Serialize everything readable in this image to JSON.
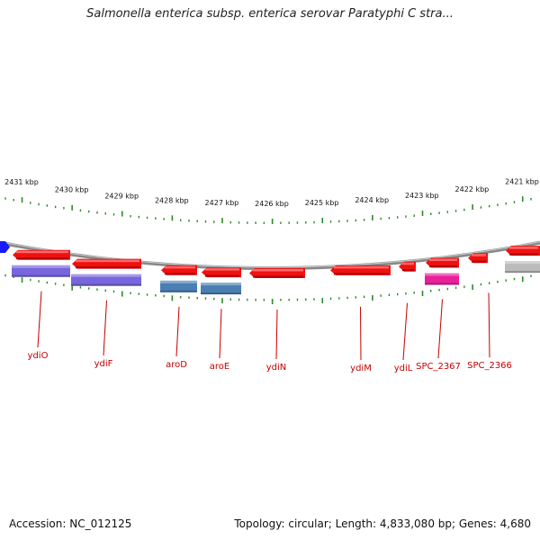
{
  "title": "Salmonella enterica subsp. enterica serovar Paratyphi C stra...",
  "footer": {
    "accession": "Accession: NC_012125",
    "summary": "Topology: circular; Length: 4,833,080 bp; Genes: 4,680"
  },
  "colors": {
    "forward_gene": "#ee1111",
    "cds_purple": "#7766dd",
    "cds_blue": "#4a7fb3",
    "cds_pink": "#e8209a",
    "cds_gray": "#bbbbbb",
    "backbone": "#888888",
    "ticks": "#2a8a2a",
    "marker": "#1a1aff",
    "label": "#c40000"
  },
  "scale": [
    {
      "kbp": 2431,
      "label": "2431 kbp"
    },
    {
      "kbp": 2430,
      "label": "2430 kbp"
    },
    {
      "kbp": 2429,
      "label": "2429 kbp"
    },
    {
      "kbp": 2428,
      "label": "2428 kbp"
    },
    {
      "kbp": 2427,
      "label": "2427 kbp"
    },
    {
      "kbp": 2426,
      "label": "2426 kbp"
    },
    {
      "kbp": 2425,
      "label": "2425 kbp"
    },
    {
      "kbp": 2424,
      "label": "2424 kbp"
    },
    {
      "kbp": 2423,
      "label": "2423 kbp"
    },
    {
      "kbp": 2422,
      "label": "2422 kbp"
    },
    {
      "kbp": 2421,
      "label": "2421 kbp"
    }
  ],
  "genes": [
    {
      "name": "ydiO",
      "cds": "purple"
    },
    {
      "name": "ydiF",
      "cds": "purple"
    },
    {
      "name": "aroD",
      "cds": "blue"
    },
    {
      "name": "aroE",
      "cds": "blue"
    },
    {
      "name": "ydiN",
      "cds": "none"
    },
    {
      "name": "ydiM",
      "cds": "none"
    },
    {
      "name": "ydiL",
      "cds": "none"
    },
    {
      "name": "SPC_2367",
      "cds": "pink"
    },
    {
      "name": "SPC_2366",
      "cds": "none"
    },
    {
      "name": "",
      "cds": "gray"
    }
  ]
}
